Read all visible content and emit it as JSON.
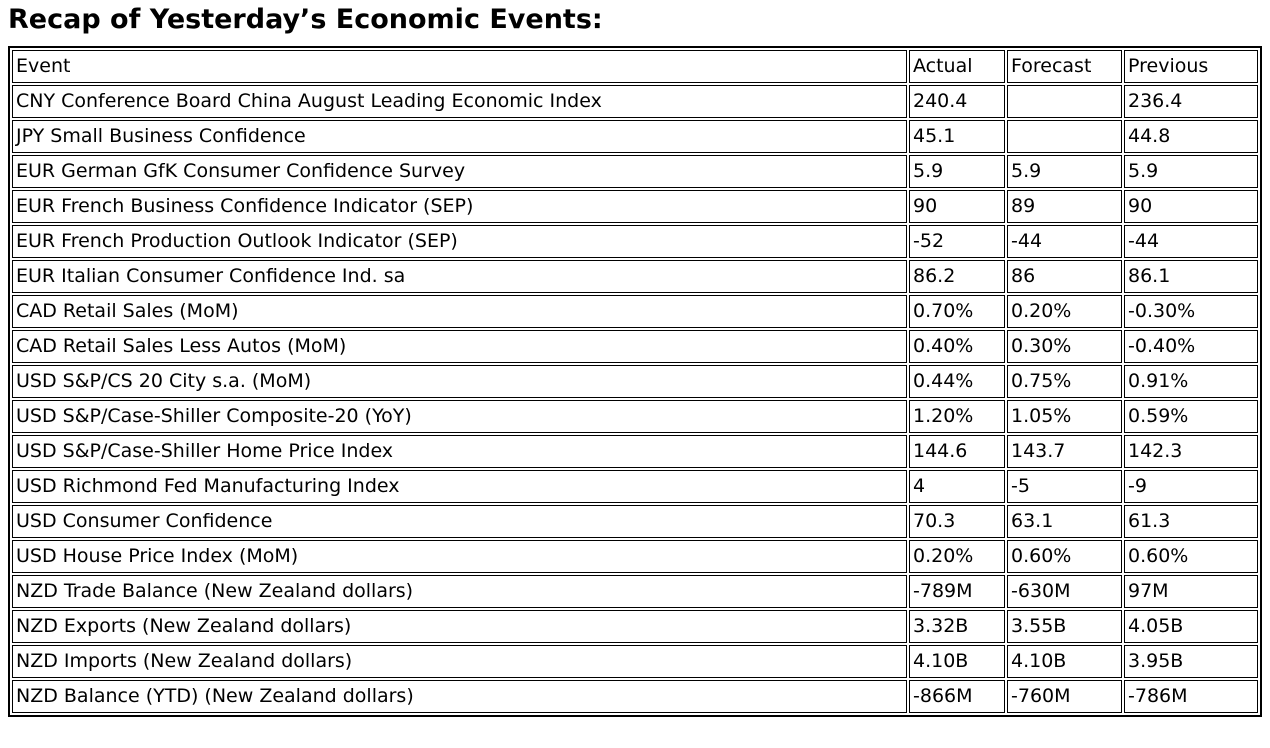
{
  "page_title": "Recap of Yesterday’s Economic Events:",
  "colors": {
    "text": "#000000",
    "border": "#000000",
    "background": "#ffffff"
  },
  "table": {
    "headers": {
      "event": "Event",
      "actual": "Actual",
      "forecast": "Forecast",
      "previous": "Previous"
    },
    "rows": [
      {
        "event": "CNY Conference Board China August Leading Economic Index",
        "actual": "240.4",
        "forecast": "",
        "previous": "236.4"
      },
      {
        "event": "JPY Small Business Confidence",
        "actual": "45.1",
        "forecast": "",
        "previous": "44.8"
      },
      {
        "event": "EUR German GfK Consumer Confidence Survey",
        "actual": "5.9",
        "forecast": "5.9",
        "previous": "5.9"
      },
      {
        "event": "EUR French Business Confidence Indicator (SEP)",
        "actual": "90",
        "forecast": "89",
        "previous": "90"
      },
      {
        "event": "EUR French Production Outlook Indicator (SEP)",
        "actual": "-52",
        "forecast": "-44",
        "previous": "-44"
      },
      {
        "event": "EUR Italian Consumer Confidence Ind. sa",
        "actual": "86.2",
        "forecast": "86",
        "previous": "86.1"
      },
      {
        "event": "CAD Retail Sales (MoM)",
        "actual": "0.70%",
        "forecast": "0.20%",
        "previous": "-0.30%"
      },
      {
        "event": "CAD Retail Sales Less Autos (MoM)",
        "actual": "0.40%",
        "forecast": "0.30%",
        "previous": "-0.40%"
      },
      {
        "event": "USD S&P/CS 20 City s.a. (MoM)",
        "actual": "0.44%",
        "forecast": "0.75%",
        "previous": "0.91%"
      },
      {
        "event": "USD S&P/Case-Shiller Composite-20 (YoY)",
        "actual": "1.20%",
        "forecast": "1.05%",
        "previous": "0.59%"
      },
      {
        "event": "USD S&P/Case-Shiller Home Price Index",
        "actual": "144.6",
        "forecast": "143.7",
        "previous": "142.3"
      },
      {
        "event": "USD Richmond Fed Manufacturing Index",
        "actual": "4",
        "forecast": "-5",
        "previous": "-9"
      },
      {
        "event": "USD Consumer Confidence",
        "actual": "70.3",
        "forecast": "63.1",
        "previous": "61.3"
      },
      {
        "event": "USD House Price Index (MoM)",
        "actual": "0.20%",
        "forecast": "0.60%",
        "previous": "0.60%"
      },
      {
        "event": "NZD Trade Balance (New Zealand dollars)",
        "actual": "-789M",
        "forecast": "-630M",
        "previous": "97M"
      },
      {
        "event": "NZD Exports (New Zealand dollars)",
        "actual": "3.32B",
        "forecast": "3.55B",
        "previous": "4.05B"
      },
      {
        "event": "NZD Imports (New Zealand dollars)",
        "actual": "4.10B",
        "forecast": "4.10B",
        "previous": "3.95B"
      },
      {
        "event": "NZD Balance (YTD) (New Zealand dollars)",
        "actual": "-866M",
        "forecast": "-760M",
        "previous": "-786M"
      }
    ]
  }
}
